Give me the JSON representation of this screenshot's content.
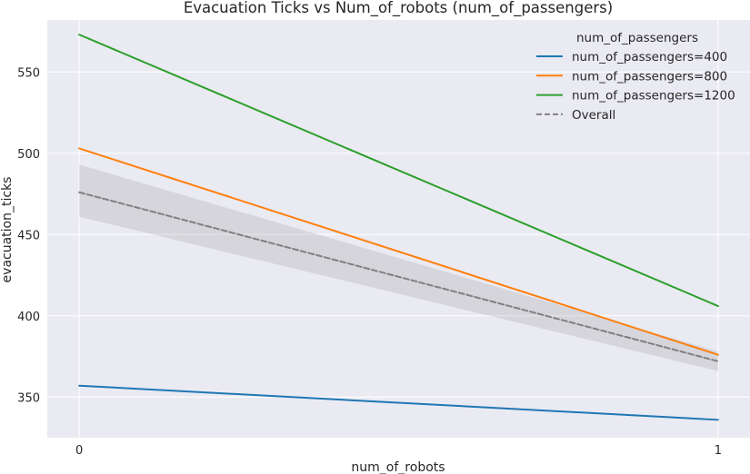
{
  "chart_data": {
    "type": "line",
    "title": "Evacuation Ticks vs Num_of_robots (num_of_passengers)",
    "xlabel": "num_of_robots",
    "ylabel": "evacuation_ticks",
    "x": [
      0,
      1
    ],
    "x_tick_labels": [
      "0",
      "1"
    ],
    "xlim": [
      -0.05,
      1.05
    ],
    "ylim": [
      325,
      582
    ],
    "y_ticks": [
      350,
      400,
      450,
      500,
      550
    ],
    "grid": true,
    "legend": {
      "title": "num_of_passengers",
      "placement": "top-right"
    },
    "series": [
      {
        "name": "num_of_passengers=400",
        "values": [
          357,
          336
        ],
        "color": "#1f77b4",
        "style": "solid"
      },
      {
        "name": "num_of_passengers=800",
        "values": [
          503,
          376
        ],
        "color": "#ff7f0e",
        "style": "solid"
      },
      {
        "name": "num_of_passengers=1200",
        "values": [
          573,
          406
        ],
        "color": "#2ca02c",
        "style": "solid"
      },
      {
        "name": "Overall",
        "values": [
          476,
          372
        ],
        "color": "#808080",
        "style": "dashed",
        "ci_lower": [
          461,
          366
        ],
        "ci_upper": [
          493,
          378
        ]
      }
    ],
    "background_color": "#eaeaf2",
    "grid_color": "#ffffff"
  }
}
